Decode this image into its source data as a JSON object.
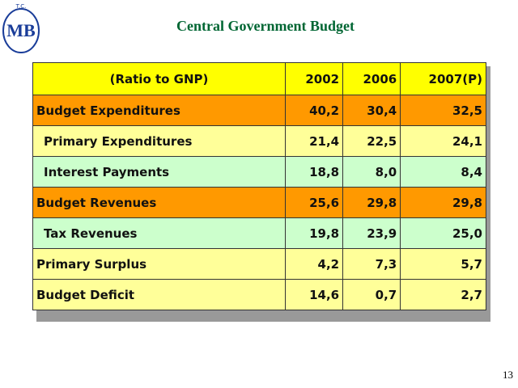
{
  "logo": {
    "top": "T.C.",
    "mark": "MB"
  },
  "header": {
    "title": "Central Government Budget"
  },
  "table": {
    "columns": [
      "(Ratio to GNP)",
      "2002",
      "2006",
      "2007(P)"
    ],
    "rows": [
      [
        "Budget Expenditures",
        "40,2",
        "30,4",
        "32,5"
      ],
      [
        "Primary Expenditures",
        "21,4",
        "22,5",
        "24,1"
      ],
      [
        "Interest Payments",
        "18,8",
        "8,0",
        "8,4"
      ],
      [
        "Budget Revenues",
        "25,6",
        "29,8",
        "29,8"
      ],
      [
        "Tax Revenues",
        "19,8",
        "23,9",
        "25,0"
      ],
      [
        "Primary Surplus",
        "4,2",
        "7,3",
        "5,7"
      ],
      [
        "Budget Deficit",
        "14,6",
        "0,7",
        "2,7"
      ]
    ]
  },
  "footer": {
    "page": "13"
  }
}
